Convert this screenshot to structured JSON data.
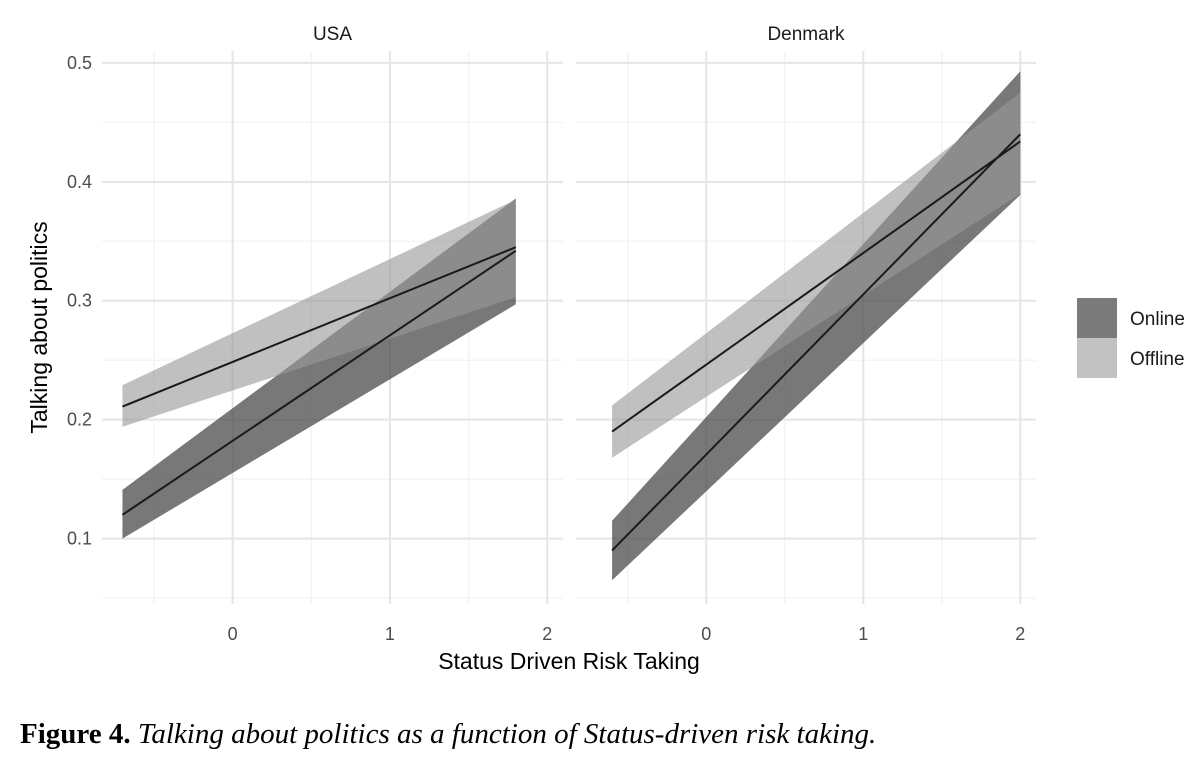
{
  "caption": {
    "label": "Figure 4.",
    "text": "Talking about politics as a function of Status-driven risk taking."
  },
  "colors": {
    "online_band": "#444444",
    "offline_band": "#9a9a9a",
    "line": "#1a1a1a",
    "grid_major": "#e5e5e5",
    "grid_minor": "#f2f2f2",
    "legend_online": "#7a7a7a",
    "legend_offline": "#c2c2c2"
  },
  "chart_data": {
    "type": "line",
    "xlabel": "Status Driven Risk Taking",
    "ylabel": "Talking about politics",
    "xlim": [
      -0.83,
      2.1
    ],
    "ylim": [
      0.045,
      0.51
    ],
    "x_ticks": [
      0,
      1,
      2
    ],
    "x_tick_labels": [
      "0",
      "1",
      "2"
    ],
    "y_ticks": [
      0.1,
      0.2,
      0.3,
      0.4,
      0.5
    ],
    "y_tick_labels": [
      "0.1",
      "0.2",
      "0.3",
      "0.4",
      "0.5"
    ],
    "grid": true,
    "legend": {
      "position": "right",
      "entries": [
        "Online",
        "Offline"
      ]
    },
    "panels": [
      {
        "title": "USA",
        "x_range": [
          -0.7,
          1.8
        ],
        "series": [
          {
            "name": "Online",
            "y": [
              0.12,
              0.342
            ],
            "lower": [
              0.1,
              0.297
            ],
            "upper": [
              0.141,
              0.386
            ]
          },
          {
            "name": "Offline",
            "y": [
              0.211,
              0.345
            ],
            "lower": [
              0.194,
              0.303
            ],
            "upper": [
              0.229,
              0.385
            ]
          }
        ]
      },
      {
        "title": "Denmark",
        "x_range": [
          -0.6,
          2.0
        ],
        "series": [
          {
            "name": "Online",
            "y": [
              0.09,
              0.44
            ],
            "lower": [
              0.065,
              0.389
            ],
            "upper": [
              0.115,
              0.493
            ]
          },
          {
            "name": "Offline",
            "y": [
              0.19,
              0.434
            ],
            "lower": [
              0.168,
              0.39
            ],
            "upper": [
              0.212,
              0.475
            ]
          }
        ]
      }
    ]
  }
}
